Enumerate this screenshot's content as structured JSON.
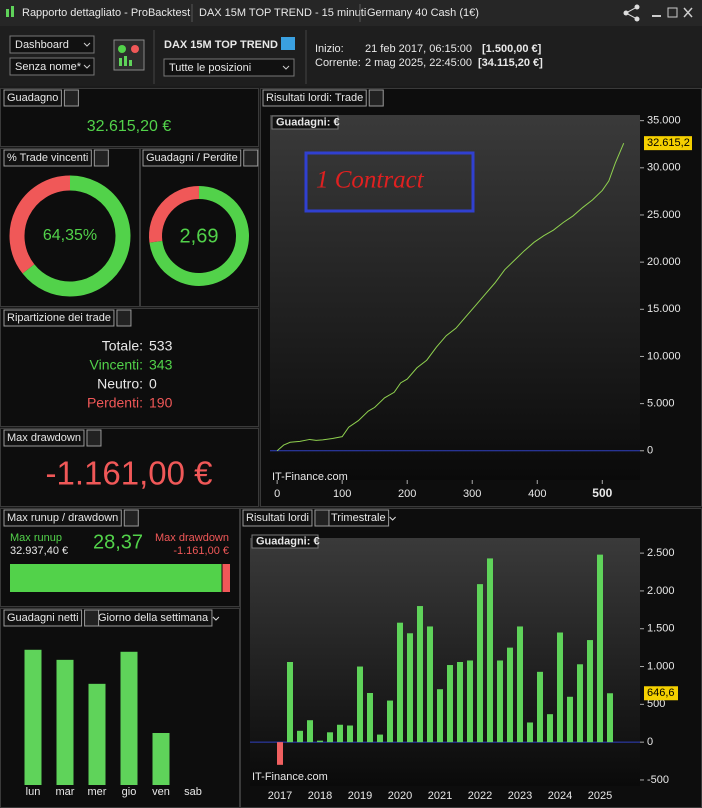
{
  "window": {
    "tabs": [
      "Rapporto dettagliato - ProBacktest",
      "DAX 15M TOP TREND - 15 minuti",
      "Germany 40 Cash (1€)"
    ]
  },
  "toolbar": {
    "view_select": "Dashboard",
    "layout_select": "Senza nome*",
    "system_name": "DAX 15M TOP TREND",
    "positions_select": "Tutte le posizioni",
    "start_label": "Inizio:",
    "start_date": "21 feb 2017, 06:15:00",
    "start_capital": "[1.500,00 €]",
    "current_label": "Corrente:",
    "current_date": "2 mag 2025, 22:45:00",
    "current_capital": "[34.115,20 €]"
  },
  "panels": {
    "gain": {
      "title": "Guadagno",
      "value": "32.615,20 €"
    },
    "win_rate": {
      "title": "% Trade vincenti"
    },
    "profit_factor": {
      "title": "Guadagni / Perdite"
    },
    "breakdown": {
      "title": "Ripartizione dei trade",
      "rows": [
        [
          "Totale:",
          "533"
        ],
        [
          "Vincenti:",
          "343"
        ],
        [
          "Neutro:",
          "0"
        ],
        [
          "Perdenti:",
          "190"
        ]
      ]
    },
    "max_drawdown": {
      "title": "Max drawdown",
      "value": "-1.161,00 €"
    },
    "trade_results": {
      "title": "Risultati lordi: Trade"
    },
    "runup": {
      "title": "Max runup / drawdown"
    },
    "weekday": {
      "title": "Guadagni netti",
      "select": "Giorno della settimana"
    },
    "quarterly": {
      "title": "Risultati lordi",
      "select": "Trimestrale"
    }
  },
  "chart_data": [
    {
      "type": "line",
      "label": "Guadagni: €",
      "annotation": "1 Contract",
      "watermark": "IT-Finance.com",
      "color": "#8fd14f",
      "x": [
        0,
        10,
        20,
        35,
        50,
        60,
        70,
        85,
        100,
        110,
        125,
        140,
        150,
        165,
        180,
        190,
        200,
        215,
        230,
        245,
        260,
        275,
        290,
        305,
        320,
        335,
        350,
        365,
        380,
        395,
        410,
        425,
        440,
        455,
        470,
        485,
        500,
        510,
        520,
        533
      ],
      "values": [
        0,
        600,
        900,
        1000,
        1200,
        1100,
        1150,
        1300,
        1500,
        2500,
        3200,
        4200,
        4600,
        5600,
        6200,
        7200,
        7600,
        8800,
        9600,
        11000,
        12200,
        13000,
        14200,
        15400,
        16600,
        17800,
        19200,
        20200,
        21200,
        22100,
        22800,
        23400,
        24200,
        24900,
        25800,
        26600,
        27600,
        28600,
        30500,
        32615.2
      ],
      "value_labels": [
        null,
        null,
        null,
        null,
        null,
        null,
        null,
        null,
        null,
        null,
        null,
        null,
        null,
        null,
        null,
        null,
        null,
        null,
        null,
        null,
        null,
        null,
        null,
        null,
        null,
        null,
        null,
        null,
        null,
        null,
        null,
        null,
        null,
        null,
        null,
        null,
        null,
        null,
        null,
        "32.615,2"
      ],
      "xlim": [
        -11,
        558
      ],
      "ylim": [
        -3100,
        35600
      ],
      "xticks": [
        0,
        100,
        200,
        300,
        400,
        500
      ],
      "yticks": [
        0,
        {
          "value": 5000,
          "label": "5.000"
        },
        {
          "value": 10000,
          "label": "10.000"
        },
        {
          "value": 15000,
          "label": "15.000"
        },
        {
          "value": 20000,
          "label": "20.000"
        },
        {
          "value": 25000,
          "label": "25.000"
        },
        {
          "value": 30000,
          "label": "30.000"
        },
        {
          "value": 35000,
          "label": "35.000"
        }
      ]
    },
    {
      "type": "bar",
      "label": "Guadagni: €",
      "watermark": "IT-Finance.com",
      "color": "#5fd35a",
      "negative_color": "#f06060",
      "categories": [
        "2017",
        null,
        null,
        null,
        "2018",
        null,
        null,
        null,
        "2019",
        null,
        null,
        null,
        "2020",
        null,
        null,
        null,
        "2021",
        null,
        null,
        null,
        "2022",
        null,
        null,
        null,
        "2023",
        null,
        null,
        null,
        "2024",
        null,
        null,
        null,
        "2025",
        null
      ],
      "values": [
        -300,
        1060,
        150,
        290,
        20,
        130,
        230,
        220,
        1000,
        650,
        100,
        550,
        1580,
        1440,
        1800,
        1530,
        700,
        1020,
        1060,
        1080,
        2090,
        2430,
        1080,
        1250,
        1530,
        260,
        930,
        370,
        1450,
        600,
        1030,
        1350,
        2480,
        646.6
      ],
      "value_labels": [
        null,
        null,
        null,
        null,
        null,
        null,
        null,
        null,
        null,
        null,
        null,
        null,
        null,
        null,
        null,
        null,
        null,
        null,
        null,
        null,
        null,
        null,
        null,
        null,
        null,
        null,
        null,
        null,
        null,
        null,
        null,
        null,
        null,
        "646,6"
      ],
      "ylim": [
        -580,
        2700
      ],
      "yticks": [
        {
          "value": -500,
          "label": "-500"
        },
        0,
        500,
        {
          "value": 1000,
          "label": "1.000"
        },
        {
          "value": 1500,
          "label": "1.500"
        },
        {
          "value": 2000,
          "label": "2.000"
        },
        {
          "value": 2500,
          "label": "2.500"
        }
      ]
    },
    {
      "type": "bar",
      "color": "#5fd35a",
      "categories": [
        "lun",
        "mar",
        "mer",
        "gio",
        "ven",
        "sab"
      ],
      "values": [
        8060,
        7460,
        6030,
        7940,
        3100,
        0
      ],
      "ylim": [
        0,
        9000
      ]
    },
    {
      "type": "donut",
      "values": [
        64.35,
        35.65
      ],
      "value_labels": [
        "64,35%",
        null
      ],
      "colors": [
        "#52d24a",
        "#f05858"
      ]
    },
    {
      "type": "ratio-donut",
      "value": 2.69,
      "value_label": "2,69",
      "colors": [
        "#52d24a",
        "#f05858"
      ]
    },
    {
      "type": "runup-bar",
      "runup_label": "Max runup",
      "runup": 32937.4,
      "runup_value_label": "32.937,40 €",
      "drawdown_label": "Max drawdown",
      "drawdown": -1161,
      "drawdown_value_label": "-1.161,00 €",
      "ratio": 28.37,
      "ratio_label": "28,37",
      "colors": [
        "#52d24a",
        "#f05858"
      ]
    }
  ]
}
